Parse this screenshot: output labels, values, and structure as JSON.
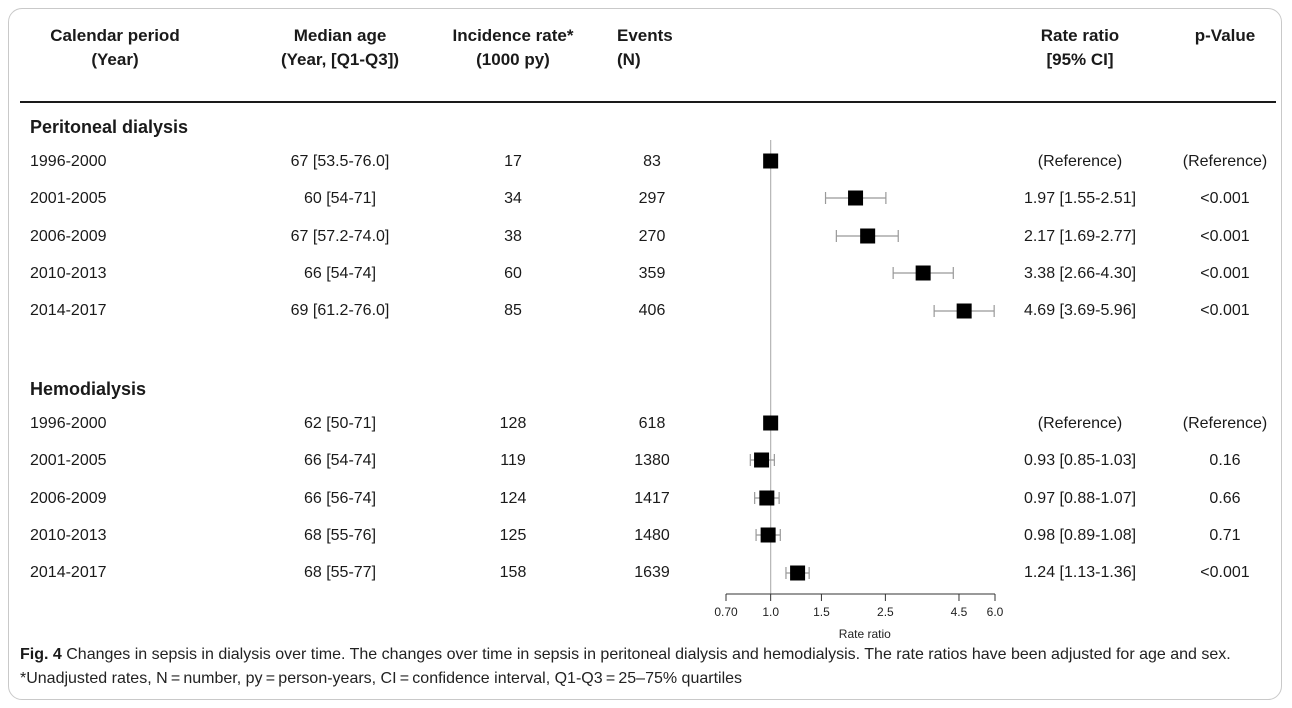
{
  "headers": {
    "period": [
      "Calendar period",
      "(Year)"
    ],
    "age": [
      "Median age",
      "(Year, [Q1-Q3])"
    ],
    "incidence": [
      "Incidence rate*",
      "(1000 py)"
    ],
    "events": [
      "Events",
      "(N)"
    ],
    "rr": [
      "Rate ratio",
      "[95% CI]"
    ],
    "p": [
      "p-Value"
    ]
  },
  "sections": {
    "pd": "Peritoneal dialysis",
    "hd": "Hemodialysis"
  },
  "rows": {
    "pd": [
      {
        "period": "1996-2000",
        "age": "67 [53.5-76.0]",
        "incidence": "17",
        "events": "83",
        "rr_text": "(Reference)",
        "p": "(Reference)"
      },
      {
        "period": "2001-2005",
        "age": "60 [54-71]",
        "incidence": "34",
        "events": "297",
        "rr_text": "1.97 [1.55-2.51]",
        "p": "<0.001"
      },
      {
        "period": "2006-2009",
        "age": "67 [57.2-74.0]",
        "incidence": "38",
        "events": "270",
        "rr_text": "2.17 [1.69-2.77]",
        "p": "<0.001"
      },
      {
        "period": "2010-2013",
        "age": "66 [54-74]",
        "incidence": "60",
        "events": "359",
        "rr_text": "3.38 [2.66-4.30]",
        "p": "<0.001"
      },
      {
        "period": "2014-2017",
        "age": "69 [61.2-76.0]",
        "incidence": "85",
        "events": "406",
        "rr_text": "4.69 [3.69-5.96]",
        "p": "<0.001"
      }
    ],
    "hd": [
      {
        "period": "1996-2000",
        "age": "62 [50-71]",
        "incidence": "128",
        "events": "618",
        "rr_text": "(Reference)",
        "p": "(Reference)"
      },
      {
        "period": "2001-2005",
        "age": "66 [54-74]",
        "incidence": "119",
        "events": "1380",
        "rr_text": "0.93 [0.85-1.03]",
        "p": "0.16"
      },
      {
        "period": "2006-2009",
        "age": "66 [56-74]",
        "incidence": "124",
        "events": "1417",
        "rr_text": "0.97 [0.88-1.07]",
        "p": "0.66"
      },
      {
        "period": "2010-2013",
        "age": "68 [55-76]",
        "incidence": "125",
        "events": "1480",
        "rr_text": "0.98 [0.89-1.08]",
        "p": "0.71"
      },
      {
        "period": "2014-2017",
        "age": "68 [55-77]",
        "incidence": "158",
        "events": "1639",
        "rr_text": "1.24 [1.13-1.36]",
        "p": "<0.001"
      }
    ]
  },
  "caption": {
    "label": "Fig. 4",
    "text": "Changes in sepsis in dialysis over time. The changes over time in sepsis in peritoneal dialysis and hemodialysis. The rate ratios have been adjusted for age and sex. *Unadjusted rates, N = number, py = person-years, CI = confidence interval, Q1-Q3 = 25–75% quartiles"
  },
  "chart_data": {
    "type": "forest",
    "xlabel": "Rate ratio",
    "xscale": "log",
    "xlim": [
      0.7,
      6.0
    ],
    "xticks": [
      0.7,
      1.0,
      1.5,
      2.5,
      4.5,
      6.0
    ],
    "xtick_labels": [
      "0.70",
      "1.0",
      "1.5",
      "2.5",
      "4.5",
      "6.0"
    ],
    "reference_line": 1.0,
    "groups": [
      {
        "name": "Peritoneal dialysis",
        "points": [
          {
            "label": "1996-2000",
            "rr": 1.0,
            "lo": null,
            "hi": null
          },
          {
            "label": "2001-2005",
            "rr": 1.97,
            "lo": 1.55,
            "hi": 2.51
          },
          {
            "label": "2006-2009",
            "rr": 2.17,
            "lo": 1.69,
            "hi": 2.77
          },
          {
            "label": "2010-2013",
            "rr": 3.38,
            "lo": 2.66,
            "hi": 4.3
          },
          {
            "label": "2014-2017",
            "rr": 4.69,
            "lo": 3.69,
            "hi": 5.96
          }
        ]
      },
      {
        "name": "Hemodialysis",
        "points": [
          {
            "label": "1996-2000",
            "rr": 1.0,
            "lo": null,
            "hi": null
          },
          {
            "label": "2001-2005",
            "rr": 0.93,
            "lo": 0.85,
            "hi": 1.03
          },
          {
            "label": "2006-2009",
            "rr": 0.97,
            "lo": 0.88,
            "hi": 1.07
          },
          {
            "label": "2010-2013",
            "rr": 0.98,
            "lo": 0.89,
            "hi": 1.08
          },
          {
            "label": "2014-2017",
            "rr": 1.24,
            "lo": 1.13,
            "hi": 1.36
          }
        ]
      }
    ]
  }
}
